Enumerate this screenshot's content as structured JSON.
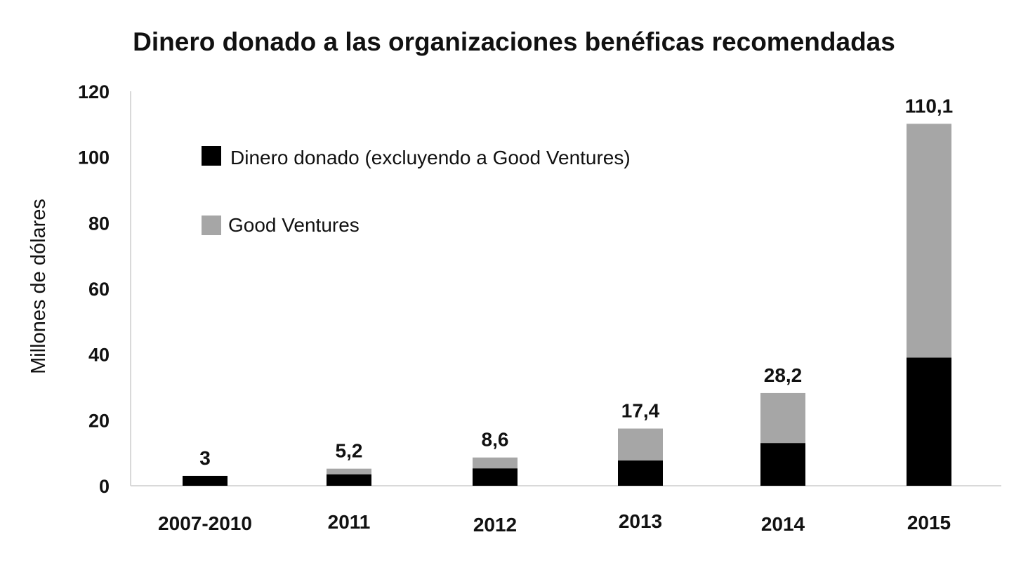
{
  "chart_data": {
    "type": "bar",
    "stacked": true,
    "title": "Dinero donado a las organizaciones benéficas recomendadas",
    "xlabel": "",
    "ylabel": "Millones de dólares",
    "ylim": [
      0,
      120
    ],
    "yticks": [
      "0",
      "20",
      "40",
      "60",
      "80",
      "100",
      "120"
    ],
    "grid": false,
    "legend_position": "top-left",
    "categories": [
      "2007-2010",
      "2011",
      "2012",
      "2013",
      "2014",
      "2015"
    ],
    "series": [
      {
        "name": "Dinero donado (excluyendo a Good Ventures)",
        "color": "#000000",
        "values": [
          3.0,
          3.5,
          5.3,
          7.7,
          13.0,
          39.0
        ]
      },
      {
        "name": "Good Ventures",
        "color": "#a6a6a6",
        "values": [
          0.0,
          1.7,
          3.3,
          9.7,
          15.2,
          71.1
        ]
      }
    ],
    "totals_labels": [
      "3",
      "5,2",
      "8,6",
      "17,4",
      "28,2",
      "110,1"
    ]
  }
}
